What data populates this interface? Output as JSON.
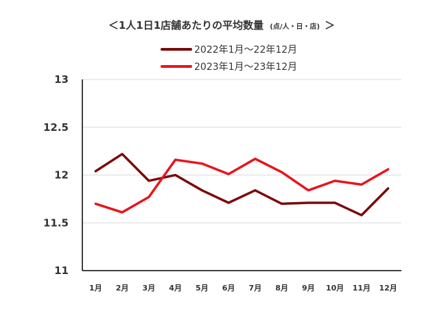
{
  "chart_data": {
    "type": "line",
    "title": "＜1人1日1店舗あたりの平均数量",
    "title_unit": "(点/人・日・店)",
    "title_close": "＞",
    "categories": [
      "1月",
      "2月",
      "3月",
      "4月",
      "5月",
      "6月",
      "7月",
      "8月",
      "9月",
      "10月",
      "11月",
      "12月"
    ],
    "series": [
      {
        "name": "2022年1月～22年12月",
        "color": "#7b0a0a",
        "values": [
          12.04,
          12.22,
          11.94,
          12.0,
          11.84,
          11.71,
          11.84,
          11.7,
          11.71,
          11.71,
          11.58,
          11.86
        ]
      },
      {
        "name": "2023年1月～23年12月",
        "color": "#e8141c",
        "values": [
          11.7,
          11.61,
          11.77,
          12.16,
          12.12,
          12.01,
          12.17,
          12.03,
          11.84,
          11.94,
          11.9,
          12.06
        ]
      }
    ],
    "y_ticks": [
      "13",
      "12.5",
      "12",
      "11.5",
      "11"
    ],
    "ylim": [
      11,
      13
    ],
    "grid": true,
    "legend_position": "top"
  }
}
